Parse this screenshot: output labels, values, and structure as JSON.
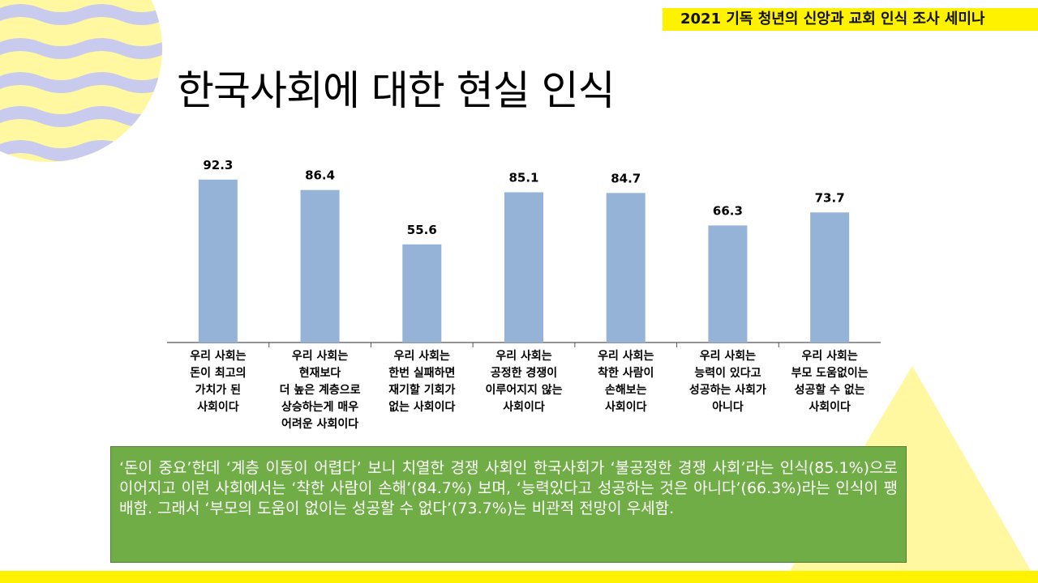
{
  "header": {
    "banner": "2021 기독 청년의 신앙과 교회 인식 조사 세미나"
  },
  "slide": {
    "title": "한국사회에 대한 현실 인식"
  },
  "colors": {
    "accent_yellow": "#fff200",
    "pale_yellow": "#fff8a0",
    "wave_blue": "#c8cbee",
    "bar_blue": "#95b3d7",
    "summary_green": "#70ad47"
  },
  "chart_data": {
    "type": "bar",
    "ylim": [
      0,
      100
    ],
    "values": [
      92.3,
      86.4,
      55.6,
      85.1,
      84.7,
      66.3,
      73.7
    ],
    "value_labels": [
      "92.3",
      "86.4",
      "55.6",
      "85.1",
      "84.7",
      "66.3",
      "73.7"
    ],
    "categories": [
      [
        "우리 사회는",
        "돈이 최고의",
        "가치가 된",
        "사회이다"
      ],
      [
        "우리 사회는",
        "현재보다",
        "더 높은 계층으로",
        "상승하는게 매우",
        "어려운 사회이다"
      ],
      [
        "우리 사회는",
        "한번 실패하면",
        "재기할 기회가",
        "없는 사회이다"
      ],
      [
        "우리 사회는",
        "공정한 경쟁이",
        "이루어지지 않는",
        "사회이다"
      ],
      [
        "우리 사회는",
        "착한 사람이",
        "손해보는",
        "사회이다"
      ],
      [
        "우리 사회는",
        "능력이 있다고",
        "성공하는 사회가",
        "아니다"
      ],
      [
        "우리 사회는",
        "부모 도움없이는",
        "성공할 수 없는",
        "사회이다"
      ]
    ]
  },
  "summary": {
    "text": "‘돈이 중요’한데 ‘계층 이동이 어렵다’ 보니 치열한 경쟁 사회인 한국사회가 ‘불공정한 경쟁 사회’라는 인식(85.1%)으로 이어지고 이런 사회에서는 ‘착한 사람이 손해’(84.7%) 보며, ‘능력있다고 성공하는 것은 아니다’(66.3%)라는 인식이 팽배함. 그래서 ‘부모의 도움이 없이는 성공할 수 없다’(73.7%)는 비관적 전망이 우세함."
  }
}
